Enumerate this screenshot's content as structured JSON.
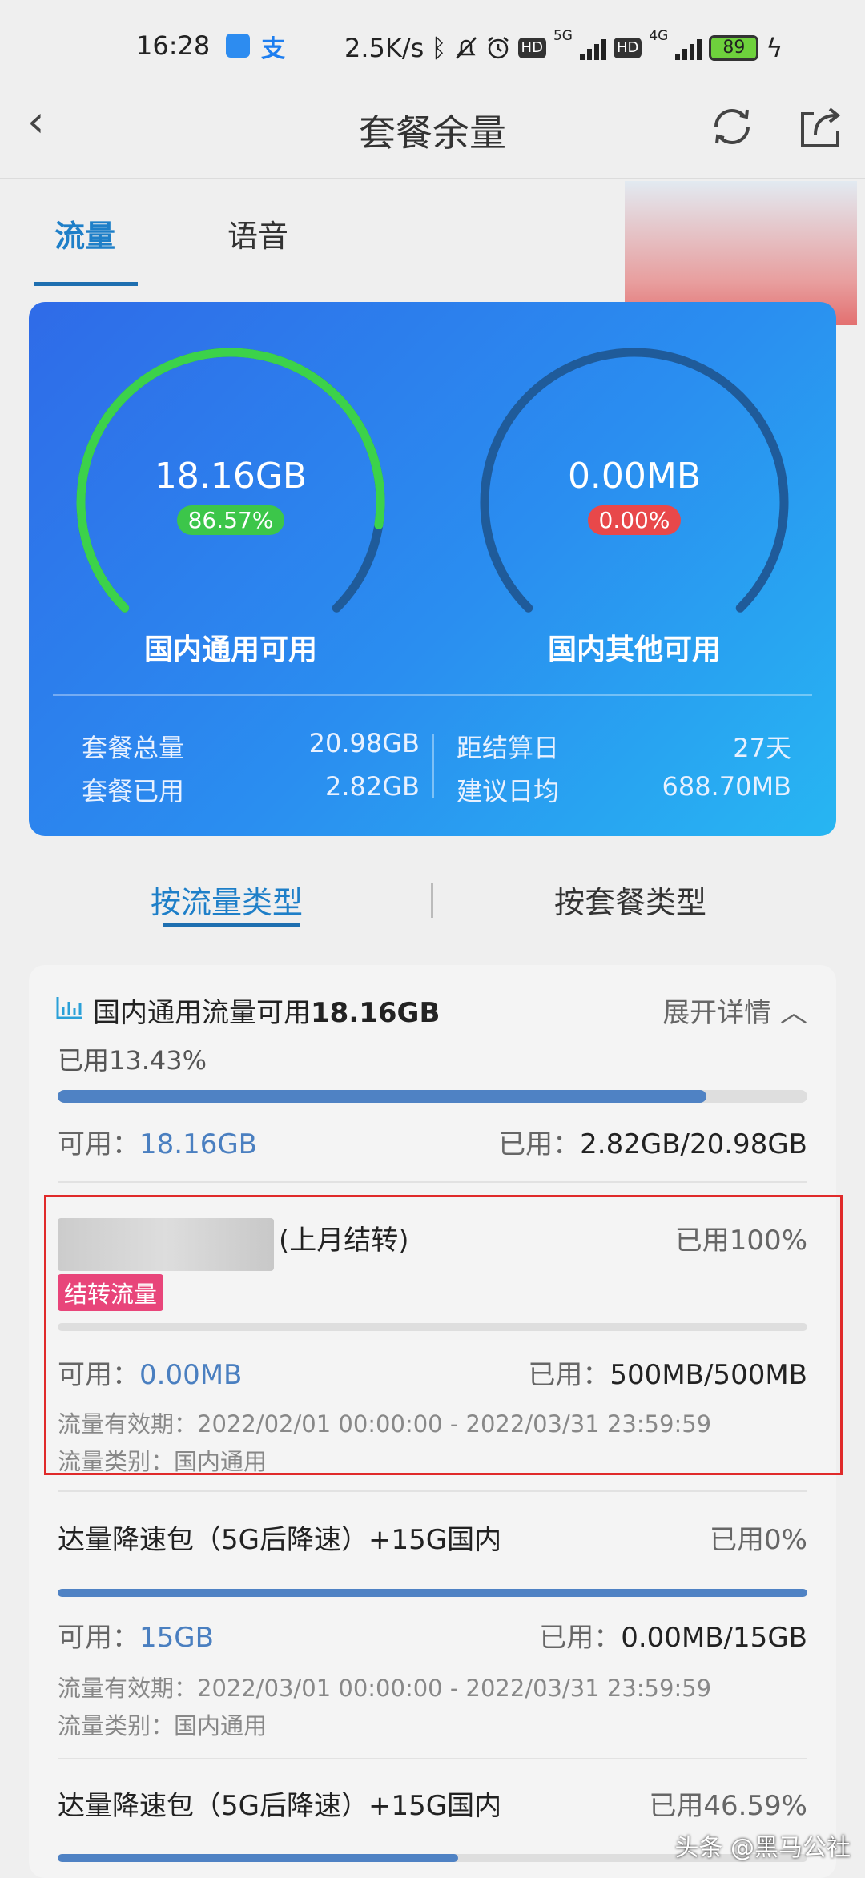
{
  "status_bar": {
    "time": "16:28",
    "net_speed": "2.5K/s",
    "sig1": "5G",
    "sig2": "4G",
    "battery": "89",
    "icons": [
      "pin-app-icon",
      "alipay-icon",
      "bluetooth-icon",
      "mute-icon",
      "alarm-icon",
      "hd-icon",
      "signal-icon",
      "battery-icon",
      "charging-icon"
    ]
  },
  "header": {
    "title": "套餐余量",
    "back_icon": "chevron-left-icon",
    "refresh_icon": "refresh-icon",
    "share_icon": "share-icon"
  },
  "tabs": [
    {
      "label": "流量",
      "active": true
    },
    {
      "label": "语音",
      "active": false
    }
  ],
  "summary": {
    "gauges": [
      {
        "value": "18.16GB",
        "percent": "86.57%",
        "fraction": 0.8657,
        "label": "国内通用可用",
        "pill_color": "#3cc64a",
        "arc_color": "#3cd24a"
      },
      {
        "value": "0.00MB",
        "percent": "0.00%",
        "fraction": 0,
        "label": "国内其他可用",
        "pill_color": "#e8484a",
        "arc_color": "#3cd24a"
      }
    ],
    "stats": {
      "total_label": "套餐总量",
      "total": "20.98GB",
      "used_label": "套餐已用",
      "used": "2.82GB",
      "days_label": "距结算日",
      "days": "27天",
      "daily_label": "建议日均",
      "daily": "688.70MB"
    }
  },
  "subtabs": [
    {
      "label": "按流量类型",
      "active": true
    },
    {
      "label": "按套餐类型",
      "active": false
    }
  ],
  "group": {
    "title_prefix": "国内通用流量可用",
    "title_value": "18.16GB",
    "expand": "展开详情",
    "used_pct": "已用13.43%",
    "remaining_fraction": 0.8657,
    "avail_label": "可用：",
    "avail": "18.16GB",
    "used_label": "已用：",
    "used": "2.82GB/20.98GB"
  },
  "items": [
    {
      "name": "(上月结转)",
      "tag": "结转流量",
      "used_pct": "已用100%",
      "remaining_fraction": 0,
      "avail_label": "可用：",
      "avail": "0.00MB",
      "used_label": "已用：",
      "used": "500MB/500MB",
      "validity": "流量有效期：2022/02/01 00:00:00 - 2022/03/31 23:59:59",
      "type": "流量类别：国内通用"
    },
    {
      "name": "达量降速包（5G后降速）+15G国内",
      "used_pct": "已用0%",
      "remaining_fraction": 1,
      "avail_label": "可用：",
      "avail": "15GB",
      "used_label": "已用：",
      "used": "0.00MB/15GB",
      "validity": "流量有效期：2022/03/01 00:00:00 - 2022/03/31 23:59:59",
      "type": "流量类别：国内通用"
    },
    {
      "name": "达量降速包（5G后降速）+15G国内",
      "used_pct": "已用46.59%",
      "remaining_fraction": 0.5341
    }
  ],
  "watermark": "头条 @黑马公社"
}
